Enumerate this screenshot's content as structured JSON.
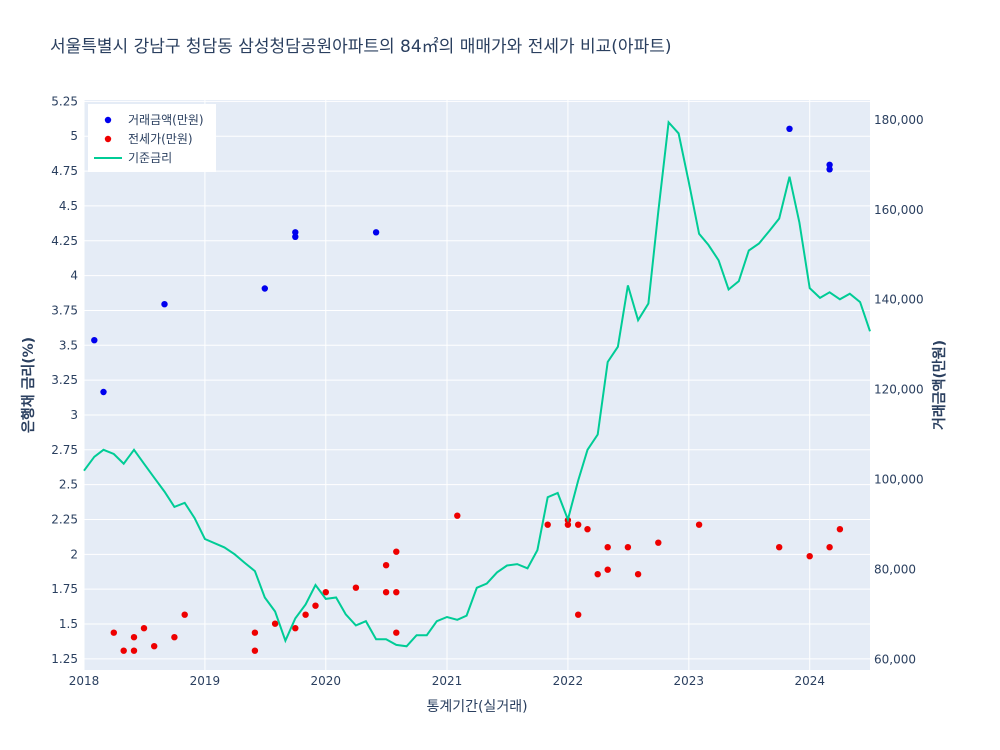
{
  "chart_data": {
    "type": "scatter",
    "title": "서울특별시 강남구 청담동 삼성청담공원아파트의 84㎡의 매매가와 전세가 비교(아파트)",
    "xlabel": "통계기간(실거래)",
    "ylabel_left": "은행채 금리(%)",
    "ylabel_right": "거래금액(만원)",
    "x_ticks": [
      "2018",
      "2019",
      "2020",
      "2021",
      "2022",
      "2023",
      "2024"
    ],
    "x_range": [
      "2018-01-01",
      "2024-07-01"
    ],
    "y_left_ticks": [
      "1.25",
      "1.5",
      "1.75",
      "2",
      "2.25",
      "2.5",
      "2.75",
      "3",
      "3.25",
      "3.5",
      "3.75",
      "4",
      "4.25",
      "4.5",
      "4.75",
      "5",
      "5.25"
    ],
    "y_left_range": [
      1.17,
      5.26
    ],
    "y_right_ticks": [
      "60,000",
      "80,000",
      "100,000",
      "120,000",
      "140,000",
      "160,000",
      "180,000"
    ],
    "y_right_range": [
      57700,
      184400
    ],
    "grid": true,
    "legend_position": "top-left",
    "series": [
      {
        "name": "거래금액(만원)",
        "kind": "markers",
        "axis": "right",
        "color": "#0000ee",
        "points": [
          [
            "2018-02-01",
            131000
          ],
          [
            "2018-03-01",
            119500
          ],
          [
            "2018-09-01",
            139000
          ],
          [
            "2019-07-01",
            142500
          ],
          [
            "2019-10-01",
            155000
          ],
          [
            "2019-10-01",
            154000
          ],
          [
            "2020-06-01",
            155000
          ],
          [
            "2023-11-01",
            178000
          ],
          [
            "2024-03-01",
            170000
          ],
          [
            "2024-03-01",
            169000
          ]
        ]
      },
      {
        "name": "전세가(만원)",
        "kind": "markers",
        "axis": "right",
        "color": "#ee0000",
        "points": [
          [
            "2018-04-01",
            66000
          ],
          [
            "2018-05-01",
            62000
          ],
          [
            "2018-06-01",
            62000
          ],
          [
            "2018-06-01",
            65000
          ],
          [
            "2018-07-01",
            67000
          ],
          [
            "2018-08-01",
            63000
          ],
          [
            "2018-10-01",
            65000
          ],
          [
            "2018-11-01",
            70000
          ],
          [
            "2019-06-01",
            62000
          ],
          [
            "2019-06-01",
            66000
          ],
          [
            "2019-08-01",
            68000
          ],
          [
            "2019-10-01",
            67000
          ],
          [
            "2019-11-01",
            70000
          ],
          [
            "2019-12-01",
            72000
          ],
          [
            "2020-01-01",
            75000
          ],
          [
            "2020-04-01",
            76000
          ],
          [
            "2020-07-01",
            75000
          ],
          [
            "2020-07-01",
            81000
          ],
          [
            "2020-08-01",
            66000
          ],
          [
            "2020-08-01",
            75000
          ],
          [
            "2020-08-01",
            84000
          ],
          [
            "2021-02-01",
            92000
          ],
          [
            "2021-11-01",
            90000
          ],
          [
            "2022-01-01",
            90000
          ],
          [
            "2022-01-01",
            91000
          ],
          [
            "2022-02-01",
            70000
          ],
          [
            "2022-02-01",
            90000
          ],
          [
            "2022-03-01",
            89000
          ],
          [
            "2022-04-01",
            79000
          ],
          [
            "2022-05-01",
            80000
          ],
          [
            "2022-05-01",
            85000
          ],
          [
            "2022-07-01",
            85000
          ],
          [
            "2022-08-01",
            79000
          ],
          [
            "2022-10-01",
            86000
          ],
          [
            "2023-02-01",
            90000
          ],
          [
            "2023-10-01",
            85000
          ],
          [
            "2024-01-01",
            83000
          ],
          [
            "2024-03-01",
            85000
          ],
          [
            "2024-04-01",
            89000
          ]
        ]
      },
      {
        "name": "기준금리",
        "kind": "line",
        "axis": "left",
        "color": "#00cc96",
        "points": [
          [
            "2018-01-01",
            2.6
          ],
          [
            "2018-02-01",
            2.7
          ],
          [
            "2018-03-01",
            2.75
          ],
          [
            "2018-04-01",
            2.72
          ],
          [
            "2018-05-01",
            2.65
          ],
          [
            "2018-06-01",
            2.75
          ],
          [
            "2018-07-01",
            2.65
          ],
          [
            "2018-08-01",
            2.55
          ],
          [
            "2018-09-01",
            2.45
          ],
          [
            "2018-10-01",
            2.34
          ],
          [
            "2018-11-01",
            2.37
          ],
          [
            "2018-12-01",
            2.26
          ],
          [
            "2019-01-01",
            2.11
          ],
          [
            "2019-03-01",
            2.05
          ],
          [
            "2019-04-01",
            2.0
          ],
          [
            "2019-05-01",
            1.94
          ],
          [
            "2019-06-01",
            1.88
          ],
          [
            "2019-07-01",
            1.69
          ],
          [
            "2019-08-01",
            1.59
          ],
          [
            "2019-09-01",
            1.38
          ],
          [
            "2019-10-01",
            1.54
          ],
          [
            "2019-11-01",
            1.64
          ],
          [
            "2019-12-01",
            1.78
          ],
          [
            "2020-01-01",
            1.68
          ],
          [
            "2020-02-01",
            1.69
          ],
          [
            "2020-03-01",
            1.57
          ],
          [
            "2020-04-01",
            1.49
          ],
          [
            "2020-05-01",
            1.52
          ],
          [
            "2020-06-01",
            1.39
          ],
          [
            "2020-07-01",
            1.39
          ],
          [
            "2020-08-01",
            1.35
          ],
          [
            "2020-09-01",
            1.34
          ],
          [
            "2020-10-01",
            1.42
          ],
          [
            "2020-11-01",
            1.42
          ],
          [
            "2020-12-01",
            1.52
          ],
          [
            "2021-01-01",
            1.55
          ],
          [
            "2021-02-01",
            1.53
          ],
          [
            "2021-03-01",
            1.56
          ],
          [
            "2021-04-01",
            1.76
          ],
          [
            "2021-05-01",
            1.79
          ],
          [
            "2021-06-01",
            1.87
          ],
          [
            "2021-07-01",
            1.92
          ],
          [
            "2021-08-01",
            1.93
          ],
          [
            "2021-09-01",
            1.9
          ],
          [
            "2021-10-01",
            2.03
          ],
          [
            "2021-11-01",
            2.41
          ],
          [
            "2021-12-01",
            2.44
          ],
          [
            "2022-01-01",
            2.25
          ],
          [
            "2022-02-01",
            2.53
          ],
          [
            "2022-03-01",
            2.75
          ],
          [
            "2022-04-01",
            2.86
          ],
          [
            "2022-05-01",
            3.38
          ],
          [
            "2022-06-01",
            3.49
          ],
          [
            "2022-07-01",
            3.93
          ],
          [
            "2022-08-01",
            3.68
          ],
          [
            "2022-09-01",
            3.8
          ],
          [
            "2022-10-01",
            4.46
          ],
          [
            "2022-11-01",
            5.1
          ],
          [
            "2022-12-01",
            5.02
          ],
          [
            "2023-01-01",
            4.67
          ],
          [
            "2023-02-01",
            4.3
          ],
          [
            "2023-03-01",
            4.22
          ],
          [
            "2023-04-01",
            4.11
          ],
          [
            "2023-05-01",
            3.9
          ],
          [
            "2023-06-01",
            3.96
          ],
          [
            "2023-07-01",
            4.18
          ],
          [
            "2023-08-01",
            4.23
          ],
          [
            "2023-09-01",
            4.32
          ],
          [
            "2023-10-01",
            4.41
          ],
          [
            "2023-11-01",
            4.71
          ],
          [
            "2023-12-01",
            4.38
          ],
          [
            "2024-01-01",
            3.91
          ],
          [
            "2024-02-01",
            3.84
          ],
          [
            "2024-03-01",
            3.88
          ],
          [
            "2024-04-01",
            3.83
          ],
          [
            "2024-05-01",
            3.87
          ],
          [
            "2024-06-01",
            3.81
          ],
          [
            "2024-07-01",
            3.6
          ]
        ]
      }
    ]
  }
}
